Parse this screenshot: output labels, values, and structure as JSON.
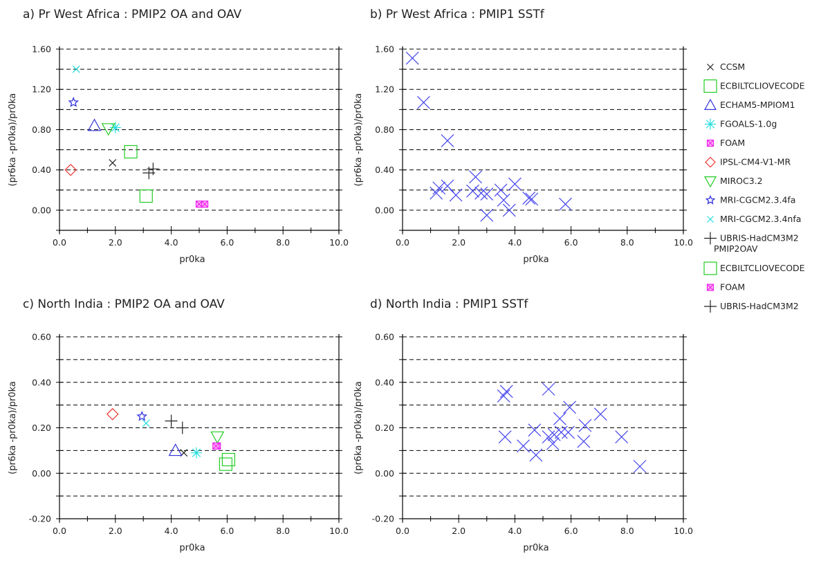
{
  "chart_data": [
    {
      "panel": "a",
      "type": "scatter",
      "title": "a) Pr West Africa : PMIP2 OA and OAV",
      "xlabel": "pr0ka",
      "ylabel": "(pr6ka -pr0ka)/pr0ka",
      "xlim": [
        0,
        10
      ],
      "ylim": [
        -0.2,
        1.6
      ],
      "xticks": [
        "0.0",
        "2.0",
        "4.0",
        "6.0",
        "8.0",
        "10.0"
      ],
      "yticks": [
        "0.00",
        "0.40",
        "0.80",
        "1.20",
        "1.60"
      ],
      "ygrid": [
        -0.2,
        0.0,
        0.2,
        0.4,
        0.6,
        0.8,
        1.0,
        1.2,
        1.4,
        1.6
      ],
      "series": [
        {
          "name": "CCSM",
          "points": [
            [
              1.9,
              0.47
            ]
          ]
        },
        {
          "name": "ECBILTCLIOVECODE",
          "points": [
            [
              2.55,
              0.58
            ]
          ]
        },
        {
          "name": "ECHAM5-MPIOM1",
          "points": [
            [
              1.25,
              0.84
            ]
          ]
        },
        {
          "name": "FGOALS-1.0g",
          "points": [
            [
              2.0,
              0.82
            ]
          ]
        },
        {
          "name": "FOAM",
          "points": [
            [
              5.0,
              0.06
            ]
          ]
        },
        {
          "name": "IPSL-CM4-V1-MR",
          "points": [
            [
              0.4,
              0.4
            ]
          ]
        },
        {
          "name": "MIROC3.2",
          "points": [
            [
              1.75,
              0.81
            ]
          ]
        },
        {
          "name": "MRI-CGCM2.3.4fa",
          "points": [
            [
              0.5,
              1.07
            ]
          ]
        },
        {
          "name": "MRI-CGCM2.3.4nfa",
          "points": [
            [
              0.6,
              1.4
            ]
          ]
        },
        {
          "name": "UBRIS-HadCM3M2",
          "points": [
            [
              3.35,
              0.41
            ]
          ]
        },
        {
          "name": "ECBILTCLIOVECODE (PMIP2OAV)",
          "points": [
            [
              3.1,
              0.14
            ]
          ]
        },
        {
          "name": "FOAM (PMIP2OAV)",
          "points": [
            [
              5.2,
              0.06
            ]
          ]
        },
        {
          "name": "UBRIS-HadCM3M2 (PMIP2OAV)",
          "points": [
            [
              3.2,
              0.37
            ]
          ]
        }
      ]
    },
    {
      "panel": "b",
      "type": "scatter",
      "title": "b) Pr West Africa : PMIP1 SSTf",
      "xlabel": "pr0ka",
      "ylabel": "(pr6ka -pr0ka)/pr0ka",
      "xlim": [
        0,
        10
      ],
      "ylim": [
        -0.2,
        1.6
      ],
      "xticks": [
        "0.0",
        "2.0",
        "4.0",
        "6.0",
        "8.0",
        "10.0"
      ],
      "yticks": [
        "0.00",
        "0.40",
        "0.80",
        "1.20",
        "1.60"
      ],
      "ygrid": [
        -0.2,
        0.0,
        0.2,
        0.4,
        0.6,
        0.8,
        1.0,
        1.2,
        1.4,
        1.6
      ],
      "series": [
        {
          "points": [
            [
              0.35,
              1.51
            ],
            [
              0.75,
              1.07
            ],
            [
              1.6,
              0.69
            ],
            [
              1.2,
              0.17
            ],
            [
              1.3,
              0.22
            ],
            [
              1.6,
              0.24
            ],
            [
              1.9,
              0.15
            ],
            [
              2.6,
              0.33
            ],
            [
              2.5,
              0.19
            ],
            [
              2.8,
              0.17
            ],
            [
              3.0,
              0.16
            ],
            [
              3.0,
              -0.05
            ],
            [
              3.5,
              0.2
            ],
            [
              3.6,
              0.1
            ],
            [
              4.0,
              0.26
            ],
            [
              3.8,
              0.0
            ],
            [
              4.5,
              0.12
            ],
            [
              4.6,
              0.11
            ],
            [
              5.8,
              0.06
            ]
          ]
        }
      ]
    },
    {
      "panel": "c",
      "type": "scatter",
      "title": "c) North India : PMIP2 OA and OAV",
      "xlabel": "pr0ka",
      "ylabel": "(pr6ka -pr0ka)/pr0ka",
      "xlim": [
        0,
        10
      ],
      "ylim": [
        -0.2,
        0.6
      ],
      "xticks": [
        "0.0",
        "2.0",
        "4.0",
        "6.0",
        "8.0",
        "10.0"
      ],
      "yticks": [
        "-0.20",
        "0.00",
        "0.20",
        "0.40",
        "0.60"
      ],
      "ygrid": [
        -0.2,
        -0.1,
        0.0,
        0.1,
        0.2,
        0.3,
        0.4,
        0.5,
        0.6
      ],
      "series": [
        {
          "name": "CCSM",
          "points": [
            [
              4.45,
              0.09
            ]
          ]
        },
        {
          "name": "ECBILTCLIOVECODE",
          "points": [
            [
              6.05,
              0.06
            ]
          ]
        },
        {
          "name": "ECHAM5-MPIOM1",
          "points": [
            [
              4.15,
              0.1
            ]
          ]
        },
        {
          "name": "FGOALS-1.0g",
          "points": [
            [
              4.9,
              0.09
            ]
          ]
        },
        {
          "name": "FOAM",
          "points": [
            [
              5.65,
              0.12
            ]
          ]
        },
        {
          "name": "IPSL-CM4-V1-MR",
          "points": [
            [
              1.9,
              0.26
            ]
          ]
        },
        {
          "name": "MIROC3.2",
          "points": [
            [
              5.65,
              0.16
            ]
          ]
        },
        {
          "name": "MRI-CGCM2.3.4fa",
          "points": [
            [
              2.95,
              0.25
            ]
          ]
        },
        {
          "name": "MRI-CGCM2.3.4nfa",
          "points": [
            [
              3.1,
              0.22
            ]
          ]
        },
        {
          "name": "UBRIS-HadCM3M2",
          "points": [
            [
              4.0,
              0.23
            ]
          ]
        },
        {
          "name": "ECBILTCLIOVECODE (PMIP2OAV)",
          "points": [
            [
              5.95,
              0.04
            ]
          ]
        },
        {
          "name": "FOAM (PMIP2OAV)",
          "points": [
            [
              5.6,
              0.12
            ]
          ]
        },
        {
          "name": "UBRIS-HadCM3M2 (PMIP2OAV)",
          "points": [
            [
              4.4,
              0.2
            ]
          ]
        }
      ]
    },
    {
      "panel": "d",
      "type": "scatter",
      "title": "d) North India : PMIP1 SSTf",
      "xlabel": "pr0ka",
      "ylabel": "(pr6ka -pr0ka)/pr0ka",
      "xlim": [
        0,
        10
      ],
      "ylim": [
        -0.2,
        0.6
      ],
      "xticks": [
        "0.0",
        "2.0",
        "4.0",
        "6.0",
        "8.0",
        "10.0"
      ],
      "yticks": [
        "-0.20",
        "0.00",
        "0.20",
        "0.40",
        "0.60"
      ],
      "ygrid": [
        -0.2,
        -0.1,
        0.0,
        0.1,
        0.2,
        0.3,
        0.4,
        0.5,
        0.6
      ],
      "series": [
        {
          "points": [
            [
              3.6,
              0.34
            ],
            [
              3.7,
              0.36
            ],
            [
              3.65,
              0.16
            ],
            [
              4.3,
              0.12
            ],
            [
              4.7,
              0.19
            ],
            [
              4.75,
              0.08
            ],
            [
              5.2,
              0.37
            ],
            [
              5.2,
              0.16
            ],
            [
              5.35,
              0.13
            ],
            [
              5.4,
              0.17
            ],
            [
              5.6,
              0.24
            ],
            [
              5.65,
              0.18
            ],
            [
              5.9,
              0.18
            ],
            [
              5.95,
              0.29
            ],
            [
              6.5,
              0.21
            ],
            [
              6.45,
              0.14
            ],
            [
              7.05,
              0.26
            ],
            [
              7.8,
              0.16
            ],
            [
              8.45,
              0.03
            ]
          ]
        }
      ]
    }
  ],
  "legend": {
    "items": [
      {
        "label": "CCSM",
        "marker": "x-small",
        "color": "#222222"
      },
      {
        "label": "ECBILTCLIOVECODE",
        "marker": "square",
        "color": "#22cc22"
      },
      {
        "label": "ECHAM5-MPIOM1",
        "marker": "triangle-up",
        "color": "#3333dd"
      },
      {
        "label": "FGOALS-1.0g",
        "marker": "asterisk",
        "color": "#22dddd"
      },
      {
        "label": "FOAM",
        "marker": "square-x",
        "color": "#ee22ee"
      },
      {
        "label": "IPSL-CM4-V1-MR",
        "marker": "diamond",
        "color": "#ee3333"
      },
      {
        "label": "MIROC3.2",
        "marker": "triangle-down",
        "color": "#22cc22"
      },
      {
        "label": "MRI-CGCM2.3.4fa",
        "marker": "star",
        "color": "#3333dd"
      },
      {
        "label": "MRI-CGCM2.3.4nfa",
        "marker": "x-small",
        "color": "#22dddd"
      },
      {
        "label": "UBRIS-HadCM3M2",
        "marker": "plus",
        "color": "#222222"
      }
    ],
    "subheading": "PMIP2OAV",
    "items_oav": [
      {
        "label": "ECBILTCLIOVECODE",
        "marker": "square",
        "color": "#22cc22"
      },
      {
        "label": "FOAM",
        "marker": "square-x",
        "color": "#ee22ee"
      },
      {
        "label": "UBRIS-HadCM3M2",
        "marker": "plus",
        "color": "#222222"
      }
    ]
  },
  "colors": {
    "pmip1_marker": "#4444ee",
    "grid": "#000000",
    "axis": "#000000"
  }
}
